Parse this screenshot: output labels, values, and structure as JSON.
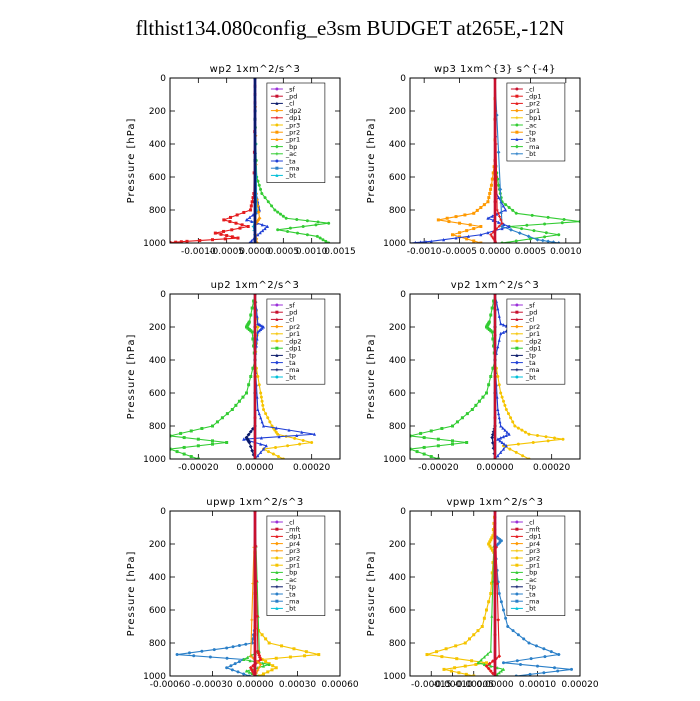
{
  "figure": {
    "title": "flthist134.080config_e3sm  BUDGET at265E,-12N"
  },
  "colors": {
    "red": "#e41a1c",
    "darkred": "#c8102e",
    "orange": "#ff9900",
    "yellow": "#f5c400",
    "green": "#33cc33",
    "blue": "#1f3fd6",
    "cyan": "#00bfd8",
    "purple": "#9b30d9",
    "navy": "#0a1a6a",
    "steel": "#2a7fc8",
    "black": "#000000"
  },
  "chart_data": [
    {
      "id": "wp2",
      "type": "line",
      "title": "wp2   1xm^2/s^3",
      "xlim": [
        -0.0015,
        0.0015
      ],
      "xticks": [
        -0.001,
        -0.0005,
        0.0,
        0.0005,
        0.001,
        0.0015
      ],
      "xtick_labels": [
        "-0.0010",
        "-0.0005",
        "0.0000",
        "0.0005",
        "0.0010",
        "0.0015"
      ],
      "ylim": [
        1000,
        0
      ],
      "yticks": [
        0,
        200,
        400,
        600,
        800,
        1000
      ],
      "ylabel": "Pressure [hPa]",
      "legend": [
        "_sf",
        "_pd",
        "_cl",
        "_dp2",
        "_dp1",
        "_pr3",
        "_pr2",
        "_pr1",
        "_bp",
        "_ac",
        "_ta",
        "_ma",
        "_bt"
      ],
      "series": [
        {
          "name": "_ac",
          "color": "green",
          "levels": [
            0,
            200,
            600,
            700,
            800,
            850,
            880,
            920,
            960,
            1000
          ],
          "values": [
            0,
            0,
            3e-05,
            0.00012,
            0.00035,
            0.00055,
            0.0013,
            0.0004,
            0.0011,
            0.0013
          ]
        },
        {
          "name": "_dp1",
          "color": "red",
          "levels": [
            0,
            200,
            700,
            800,
            860,
            900,
            940,
            970,
            990,
            1000
          ],
          "values": [
            0,
            0,
            -2e-05,
            -8e-05,
            -0.00055,
            -0.00012,
            -0.0007,
            -0.0003,
            -0.0012,
            -0.0016
          ]
        },
        {
          "name": "_ta",
          "color": "blue",
          "levels": [
            0,
            200,
            700,
            800,
            860,
            900,
            950,
            1000
          ],
          "values": [
            0,
            0,
            2e-05,
            8e-05,
            -0.00015,
            0.00022,
            5e-05,
            -0.0001
          ]
        },
        {
          "name": "_pr1",
          "color": "orange",
          "levels": [
            0,
            700,
            850,
            900,
            1000
          ],
          "values": [
            0,
            2e-05,
            8e-05,
            -2e-05,
            4e-05
          ]
        },
        {
          "name": "_bt",
          "color": "cyan",
          "levels": [
            0,
            800,
            900,
            1000
          ],
          "values": [
            0,
            3e-05,
            -3e-05,
            2e-05
          ]
        },
        {
          "name": "_sf",
          "color": "purple",
          "levels": [
            0,
            1000
          ],
          "values": [
            0,
            0
          ]
        },
        {
          "name": "_cl",
          "color": "navy",
          "levels": [
            0,
            1000
          ],
          "values": [
            0,
            0
          ]
        }
      ]
    },
    {
      "id": "wp3",
      "type": "line",
      "title": "wp3   1xm^{3} s^{-4}",
      "xlim": [
        -0.0012,
        0.0012
      ],
      "xticks": [
        -0.001,
        -0.0005,
        0.0,
        0.0005,
        0.001
      ],
      "xtick_labels": [
        "-0.0010",
        "-0.0005",
        "0.0000",
        "0.0005",
        "0.0010"
      ],
      "ylim": [
        1000,
        0
      ],
      "yticks": [
        0,
        200,
        400,
        600,
        800,
        1000
      ],
      "ylabel": "Pressure [hPa]",
      "legend": [
        "_cl",
        "_dp1",
        "_pr2",
        "_pr1",
        "_bp1",
        "_ac",
        "_tp",
        "_ta",
        "_ma",
        "_bt"
      ],
      "series": [
        {
          "name": "_ac",
          "color": "green",
          "levels": [
            0,
            500,
            650,
            750,
            820,
            870,
            900,
            950,
            1000
          ],
          "values": [
            0,
            0,
            5e-05,
            0.0001,
            0.0003,
            0.0012,
            0.0002,
            0.0009,
            0.0001
          ]
        },
        {
          "name": "_pr1",
          "color": "orange",
          "levels": [
            0,
            500,
            650,
            750,
            820,
            860,
            900,
            950,
            1000
          ],
          "values": [
            0,
            0,
            -5e-05,
            -0.0001,
            -0.0003,
            -0.0008,
            -0.0002,
            -0.0006,
            -0.0002
          ]
        },
        {
          "name": "_ta",
          "color": "blue",
          "levels": [
            0,
            700,
            800,
            850,
            900,
            950,
            990,
            1000
          ],
          "values": [
            0,
            2e-05,
            0.00015,
            -0.0001,
            0.0002,
            -0.0002,
            -0.0009,
            -0.0012
          ]
        },
        {
          "name": "_bt",
          "color": "steel",
          "levels": [
            0,
            900,
            980,
            1000
          ],
          "values": [
            0,
            0.0001,
            0.0006,
            0.0009
          ]
        },
        {
          "name": "_dp1",
          "color": "red",
          "levels": [
            0,
            800,
            880,
            950,
            1000
          ],
          "values": [
            0,
            3e-05,
            0.0001,
            -6e-05,
            2e-05
          ]
        },
        {
          "name": "_cl",
          "color": "darkred",
          "levels": [
            0,
            1000
          ],
          "values": [
            0,
            0
          ]
        }
      ]
    },
    {
      "id": "up2",
      "type": "line",
      "title": "up2   1xm^2/s^3",
      "xlim": [
        -0.0003,
        0.0003
      ],
      "xticks": [
        -0.0002,
        0.0,
        0.0002
      ],
      "xtick_labels": [
        "-0.00020",
        "0.00000",
        "0.00020"
      ],
      "ylim": [
        1000,
        0
      ],
      "yticks": [
        0,
        200,
        400,
        600,
        800,
        1000
      ],
      "ylabel": "Pressure [hPa]",
      "legend": [
        "_sf",
        "_pd",
        "_cl",
        "_pr2",
        "_pr1",
        "_dp2",
        "_dp1",
        "_tp",
        "_ta",
        "_ma",
        "_bt"
      ],
      "series": [
        {
          "name": "_pr1",
          "color": "yellow",
          "levels": [
            0,
            200,
            400,
            600,
            700,
            800,
            850,
            900,
            940,
            1000
          ],
          "values": [
            0,
            1e-05,
            0.0,
            2e-05,
            3e-05,
            6e-05,
            8e-05,
            0.0002,
            3e-05,
            0.0001
          ]
        },
        {
          "name": "_dp1",
          "color": "green",
          "levels": [
            0,
            170,
            200,
            230,
            400,
            600,
            700,
            800,
            860,
            900,
            940,
            1000
          ],
          "values": [
            0,
            -2e-05,
            -3e-05,
            -1e-05,
            0.0,
            -3e-05,
            -8e-05,
            -0.00015,
            -0.0003,
            -0.0001,
            -0.0003,
            -0.0002
          ]
        },
        {
          "name": "_ta",
          "color": "blue",
          "levels": [
            0,
            180,
            200,
            230,
            400,
            700,
            800,
            850,
            880,
            920,
            1000
          ],
          "values": [
            0,
            1e-05,
            3e-05,
            1e-05,
            0.0,
            1e-05,
            3e-05,
            0.00021,
            -4e-05,
            4e-05,
            0.0
          ]
        },
        {
          "name": "_tp",
          "color": "navy",
          "levels": [
            0,
            800,
            870,
            900,
            1000
          ],
          "values": [
            0,
            0.0,
            -3e-05,
            -2e-05,
            0.0
          ]
        },
        {
          "name": "_bt",
          "color": "cyan",
          "levels": [
            0,
            1000
          ],
          "values": [
            0,
            0
          ]
        },
        {
          "name": "_cl",
          "color": "darkred",
          "levels": [
            0,
            1000
          ],
          "values": [
            0,
            0
          ]
        }
      ]
    },
    {
      "id": "vp2",
      "type": "line",
      "title": "vp2   1xm^2/s^3",
      "xlim": [
        -0.0003,
        0.0003
      ],
      "xticks": [
        -0.0002,
        0.0,
        0.0002
      ],
      "xtick_labels": [
        "-0.00020",
        "0.00000",
        "0.00020"
      ],
      "ylim": [
        1000,
        0
      ],
      "yticks": [
        0,
        200,
        400,
        600,
        800,
        1000
      ],
      "ylabel": "Pressure [hPa]",
      "legend": [
        "_sf",
        "_pd",
        "_cl",
        "_pr2",
        "_pr1",
        "_dp2",
        "_dp1",
        "_tp",
        "_ta",
        "_ma",
        "_bt"
      ],
      "series": [
        {
          "name": "_pr1",
          "color": "yellow",
          "levels": [
            0,
            400,
            600,
            700,
            800,
            850,
            880,
            920,
            1000
          ],
          "values": [
            0,
            0.0,
            2e-05,
            4e-05,
            7e-05,
            0.00012,
            0.00024,
            3e-05,
            0.00012
          ]
        },
        {
          "name": "_dp1",
          "color": "green",
          "levels": [
            0,
            170,
            200,
            230,
            400,
            600,
            700,
            800,
            860,
            900,
            940,
            1000
          ],
          "values": [
            0,
            -2e-05,
            -3e-05,
            -1e-05,
            0.0,
            -3e-05,
            -8e-05,
            -0.00015,
            -0.0003,
            -0.0001,
            -0.0003,
            -0.0002
          ]
        },
        {
          "name": "_ta",
          "color": "blue",
          "levels": [
            0,
            180,
            210,
            240,
            400,
            700,
            800,
            850,
            880,
            920,
            1000
          ],
          "values": [
            0,
            2e-05,
            6e-05,
            2e-05,
            0.0,
            1e-05,
            2e-05,
            5e-05,
            1e-05,
            4e-05,
            0.0
          ]
        },
        {
          "name": "_tp",
          "color": "navy",
          "levels": [
            0,
            800,
            870,
            1000
          ],
          "values": [
            0,
            0.0,
            -1e-05,
            0.0
          ]
        },
        {
          "name": "_bt",
          "color": "cyan",
          "levels": [
            0,
            1000
          ],
          "values": [
            0,
            0
          ]
        },
        {
          "name": "_cl",
          "color": "darkred",
          "levels": [
            0,
            1000
          ],
          "values": [
            0,
            0
          ]
        }
      ]
    },
    {
      "id": "upwp",
      "type": "line",
      "title": "upwp   1xm^2/s^3",
      "xlim": [
        -0.0006,
        0.0006
      ],
      "xticks": [
        -0.0006,
        -0.0003,
        0.0,
        0.0003,
        0.0006
      ],
      "xtick_labels": [
        "-0.00060",
        "-0.00030",
        "0.00000",
        "0.00030",
        "0.00060"
      ],
      "ylim": [
        1000,
        0
      ],
      "yticks": [
        0,
        200,
        400,
        600,
        800,
        1000
      ],
      "ylabel": "Pressure [hPa]",
      "legend": [
        "_cl",
        "_mft",
        "_dp1",
        "_pr4",
        "_pr3",
        "_pr2",
        "_pr1",
        "_bp",
        "_ac",
        "_tp",
        "_ta",
        "_ma",
        "_bt"
      ],
      "series": [
        {
          "name": "_ta",
          "color": "steel",
          "levels": [
            0,
            700,
            800,
            830,
            870,
            900,
            950,
            1000
          ],
          "values": [
            0,
            0.0,
            -2e-05,
            -0.0002,
            -0.00055,
            -8e-05,
            -0.0002,
            -4e-05
          ]
        },
        {
          "name": "_pr1",
          "color": "yellow",
          "levels": [
            0,
            700,
            800,
            870,
            900,
            950,
            1000
          ],
          "values": [
            0,
            0.0,
            0.0001,
            0.00045,
            5e-05,
            0.00015,
            3e-05
          ]
        },
        {
          "name": "_ac",
          "color": "green",
          "levels": [
            0,
            850,
            900,
            930,
            970,
            1000
          ],
          "values": [
            0,
            3e-05,
            -8e-05,
            0.0001,
            -6e-05,
            2e-05
          ]
        },
        {
          "name": "_dp1",
          "color": "red",
          "levels": [
            0,
            850,
            900,
            950,
            1000
          ],
          "values": [
            0,
            2e-05,
            4e-05,
            -3e-05,
            0.0
          ]
        },
        {
          "name": "_pr3",
          "color": "orange",
          "levels": [
            0,
            880,
            930,
            1000
          ],
          "values": [
            0,
            -3e-05,
            4e-05,
            0.0
          ]
        },
        {
          "name": "_cl",
          "color": "purple",
          "levels": [
            0,
            1000
          ],
          "values": [
            0,
            0
          ]
        },
        {
          "name": "_mft",
          "color": "darkred",
          "levels": [
            0,
            1000
          ],
          "values": [
            0,
            0
          ]
        }
      ]
    },
    {
      "id": "vpwp",
      "type": "line",
      "title": "vpwp   1xm^2/s^3",
      "xlim": [
        -0.0002,
        0.0002
      ],
      "xticks": [
        -0.00015,
        -0.0001,
        -5e-05,
        0.0,
        0.0001,
        0.0002
      ],
      "xtick_labels": [
        "-0.00015",
        "-0.00010",
        "-0.00005",
        "0.00000",
        "0.00010",
        "0.00020"
      ],
      "ylim": [
        1000,
        0
      ],
      "yticks": [
        0,
        200,
        400,
        600,
        800,
        1000
      ],
      "ylabel": "Pressure [hPa]",
      "legend": [
        "_cl",
        "_mft",
        "_dp1",
        "_pr4",
        "_pr3",
        "_pr2",
        "_pr1",
        "_bp",
        "_ac",
        "_tp",
        "_ta",
        "_ma",
        "_bt"
      ],
      "series": [
        {
          "name": "_ta",
          "color": "steel",
          "levels": [
            0,
            150,
            180,
            220,
            500,
            700,
            800,
            870,
            920,
            960,
            1000
          ],
          "values": [
            0,
            0.0,
            1.5e-05,
            0.0,
            1e-05,
            3e-05,
            8e-05,
            0.00015,
            2e-05,
            0.00018,
            5e-05
          ]
        },
        {
          "name": "_pr1",
          "color": "yellow",
          "levels": [
            0,
            150,
            200,
            250,
            500,
            700,
            800,
            870,
            920,
            960,
            1000
          ],
          "values": [
            0,
            -5e-06,
            -1.5e-05,
            -3e-06,
            -1e-05,
            -3e-05,
            -7e-05,
            -0.00016,
            -2e-05,
            -0.00012,
            -5e-05
          ]
        },
        {
          "name": "_ac",
          "color": "green",
          "levels": [
            0,
            850,
            920,
            960,
            1000
          ],
          "values": [
            0,
            -1e-05,
            -4e-05,
            2e-05,
            0.0
          ]
        },
        {
          "name": "_dp1",
          "color": "red",
          "levels": [
            0,
            880,
            940,
            1000
          ],
          "values": [
            0,
            1e-05,
            -2e-05,
            0.0
          ]
        },
        {
          "name": "_cl",
          "color": "purple",
          "levels": [
            0,
            1000
          ],
          "values": [
            0,
            0
          ]
        },
        {
          "name": "_mft",
          "color": "darkred",
          "levels": [
            0,
            1000
          ],
          "values": [
            0,
            0
          ]
        }
      ]
    }
  ]
}
